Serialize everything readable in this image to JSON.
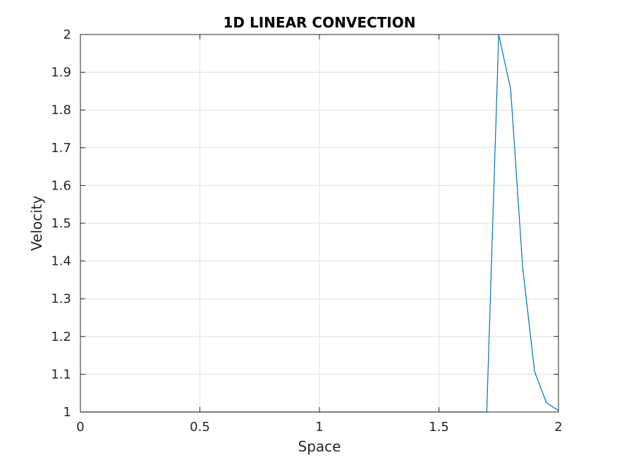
{
  "chart_data": {
    "type": "line",
    "title": "1D LINEAR CONVECTION",
    "xlabel": "Space",
    "ylabel": "Velocity",
    "xlim": [
      0,
      2
    ],
    "ylim": [
      1,
      2
    ],
    "xticks": [
      0,
      0.5,
      1,
      1.5,
      2
    ],
    "xtick_labels": [
      "0",
      "0.5",
      "1",
      "1.5",
      "2"
    ],
    "yticks": [
      1,
      1.1,
      1.2,
      1.3,
      1.4,
      1.5,
      1.6,
      1.7,
      1.8,
      1.9,
      2
    ],
    "ytick_labels": [
      "1",
      "1.1",
      "1.2",
      "1.3",
      "1.4",
      "1.5",
      "1.6",
      "1.7",
      "1.8",
      "1.9",
      "2"
    ],
    "grid": true,
    "series": [
      {
        "color": "#0072BD",
        "x": [
          0,
          0.05,
          0.1,
          0.15,
          0.2,
          0.25,
          0.3,
          0.35,
          0.4,
          0.45,
          0.5,
          0.55,
          0.6,
          0.65,
          0.7,
          0.75,
          0.8,
          0.85,
          0.9,
          0.95,
          1.0,
          1.05,
          1.1,
          1.15,
          1.2,
          1.25,
          1.3,
          1.35,
          1.4,
          1.45,
          1.5,
          1.55,
          1.6,
          1.65,
          1.7,
          1.75,
          1.8,
          1.85,
          1.9,
          1.95,
          2.0
        ],
        "y": [
          1,
          1,
          1,
          1,
          1,
          1,
          1,
          1,
          1,
          1,
          1,
          1,
          1,
          1,
          1,
          1,
          1,
          1,
          1,
          1,
          1,
          1,
          1,
          1,
          1,
          1,
          1,
          1,
          1,
          1,
          1,
          1,
          1,
          1,
          1,
          2.0,
          1.855,
          1.385,
          1.107,
          1.024,
          1.004
        ]
      }
    ]
  }
}
